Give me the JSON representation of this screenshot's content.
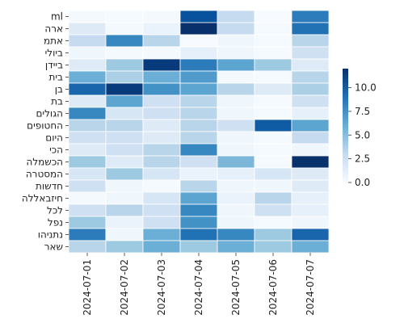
{
  "chart_data": {
    "type": "heatmap",
    "title": "",
    "xlabel": "",
    "ylabel": "",
    "x": [
      "2024-07-01",
      "2024-07-02",
      "2024-07-03",
      "2024-07-04",
      "2024-07-05",
      "2024-07-06",
      "2024-07-07"
    ],
    "y": [
      "ml",
      "ארה",
      "אתמ",
      "ביולי",
      "ביידן",
      "בית",
      "בן",
      "בת",
      "הגולים",
      "החטופים",
      "היום",
      "הכי",
      "הכשמלה",
      "המסטרה",
      "חדשות",
      "חיזבאללה",
      "לכל",
      "נפל",
      "נתניהו",
      "שאר"
    ],
    "values": [
      [
        0.2,
        0.1,
        0.2,
        10.5,
        3.0,
        0.0,
        8.5
      ],
      [
        1.5,
        0.2,
        0.8,
        12.0,
        3.0,
        0.1,
        9.0
      ],
      [
        3.0,
        8.0,
        3.5,
        0.0,
        0.5,
        0.1,
        3.5
      ],
      [
        0.5,
        0.2,
        0.2,
        1.0,
        0.5,
        0.1,
        2.5
      ],
      [
        1.5,
        4.5,
        11.5,
        8.5,
        6.5,
        4.5,
        1.5
      ],
      [
        6.0,
        4.0,
        6.0,
        7.0,
        0.2,
        0.1,
        3.5
      ],
      [
        9.5,
        11.5,
        7.5,
        6.5,
        3.5,
        1.5,
        4.0
      ],
      [
        1.5,
        6.5,
        2.5,
        3.5,
        0.5,
        0.1,
        2.5
      ],
      [
        8.0,
        2.0,
        2.5,
        3.5,
        0.5,
        0.1,
        1.0
      ],
      [
        3.5,
        3.5,
        1.5,
        3.5,
        2.5,
        10.0,
        6.5
      ],
      [
        2.5,
        2.5,
        1.5,
        3.5,
        0.5,
        0.1,
        3.0
      ],
      [
        1.5,
        2.5,
        3.5,
        8.0,
        0.5,
        0.1,
        0.5
      ],
      [
        4.5,
        1.5,
        3.5,
        2.5,
        5.5,
        0.1,
        12.0
      ],
      [
        2.0,
        4.5,
        2.0,
        0.8,
        1.0,
        2.0,
        1.5
      ],
      [
        2.5,
        0.5,
        0.1,
        3.5,
        0.5,
        0.5,
        1.5
      ],
      [
        0.2,
        0.5,
        2.0,
        6.5,
        0.8,
        3.5,
        1.0
      ],
      [
        2.5,
        3.5,
        2.5,
        8.0,
        0.5,
        2.5,
        1.0
      ],
      [
        4.5,
        0.8,
        2.5,
        7.5,
        0.5,
        0.1,
        0.5
      ],
      [
        8.5,
        0.5,
        6.0,
        9.0,
        8.0,
        4.5,
        9.5
      ],
      [
        3.5,
        4.5,
        6.0,
        4.5,
        6.0,
        4.5,
        6.0
      ]
    ],
    "zlim": [
      0,
      12
    ],
    "colormap": "Blues",
    "colorbar_ticks": [
      "0.0",
      "2.5",
      "5.0",
      "7.5",
      "10.0"
    ],
    "colorbar_values": [
      0,
      2.5,
      5,
      7.5,
      10
    ],
    "grid_line_color": "#ffffff",
    "legend": "colorbar-right"
  }
}
